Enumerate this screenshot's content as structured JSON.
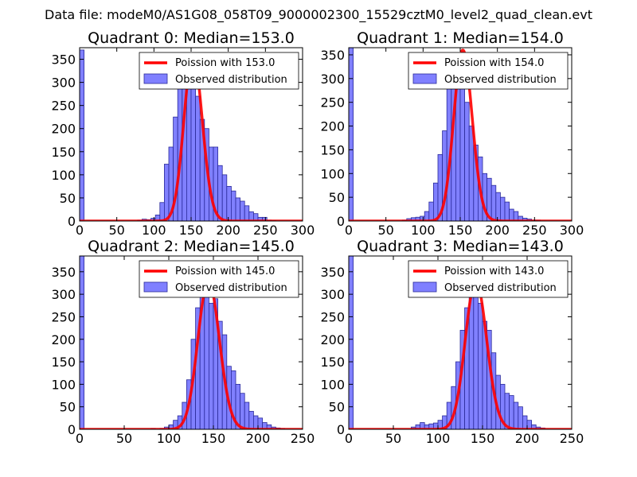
{
  "figure": {
    "suptitle": "Data file: modeM0/AS1G08_058T09_9000002300_15529cztM0_level2_quad_clean.evt"
  },
  "colors": {
    "bar_fill": "#8080ff",
    "bar_edge": "#2a2a99",
    "poisson_line": "#ff0000",
    "frame": "#000000"
  },
  "chart_data": [
    {
      "type": "bar",
      "title": "Quadrant 0: Median=153.0",
      "median": 153.0,
      "xlim": [
        0,
        300
      ],
      "ylim": [
        0,
        375
      ],
      "xticks": [
        0,
        50,
        100,
        150,
        200,
        250,
        300
      ],
      "yticks": [
        0,
        50,
        100,
        150,
        200,
        250,
        300,
        350
      ],
      "bin_width": 6,
      "bins": [
        [
          0,
          370
        ],
        [
          78,
          2
        ],
        [
          84,
          4
        ],
        [
          90,
          3
        ],
        [
          96,
          6
        ],
        [
          102,
          13
        ],
        [
          108,
          40
        ],
        [
          114,
          123
        ],
        [
          120,
          160
        ],
        [
          126,
          225
        ],
        [
          132,
          300
        ],
        [
          138,
          320
        ],
        [
          144,
          340
        ],
        [
          150,
          340
        ],
        [
          156,
          270
        ],
        [
          162,
          220
        ],
        [
          168,
          200
        ],
        [
          174,
          160
        ],
        [
          180,
          160
        ],
        [
          186,
          120
        ],
        [
          192,
          100
        ],
        [
          198,
          75
        ],
        [
          204,
          65
        ],
        [
          210,
          50
        ],
        [
          216,
          43
        ],
        [
          222,
          33
        ],
        [
          228,
          20
        ],
        [
          234,
          16
        ],
        [
          240,
          8
        ],
        [
          246,
          8
        ],
        [
          252,
          2
        ],
        [
          258,
          1
        ]
      ],
      "legend": {
        "placement": "top-right",
        "line_label": "Poission with 153.0",
        "bar_label": "Observed distribution"
      }
    },
    {
      "type": "bar",
      "title": "Quadrant 1: Median=154.0",
      "median": 154.0,
      "xlim": [
        0,
        300
      ],
      "ylim": [
        0,
        365
      ],
      "xticks": [
        0,
        50,
        100,
        150,
        200,
        250,
        300
      ],
      "yticks": [
        0,
        50,
        100,
        150,
        200,
        250,
        300,
        350
      ],
      "bin_width": 6,
      "bins": [
        [
          0,
          365
        ],
        [
          72,
          2
        ],
        [
          78,
          5
        ],
        [
          84,
          7
        ],
        [
          90,
          8
        ],
        [
          96,
          10
        ],
        [
          102,
          20
        ],
        [
          108,
          40
        ],
        [
          114,
          80
        ],
        [
          120,
          140
        ],
        [
          126,
          190
        ],
        [
          132,
          280
        ],
        [
          138,
          290
        ],
        [
          144,
          340
        ],
        [
          150,
          310
        ],
        [
          156,
          250
        ],
        [
          162,
          200
        ],
        [
          168,
          160
        ],
        [
          174,
          135
        ],
        [
          180,
          100
        ],
        [
          186,
          90
        ],
        [
          192,
          75
        ],
        [
          198,
          60
        ],
        [
          204,
          50
        ],
        [
          210,
          40
        ],
        [
          216,
          25
        ],
        [
          222,
          20
        ],
        [
          228,
          10
        ],
        [
          234,
          6
        ],
        [
          240,
          4
        ],
        [
          246,
          2
        ],
        [
          252,
          2
        ]
      ],
      "legend": {
        "placement": "top-right",
        "line_label": "Poission with 154.0",
        "bar_label": "Observed distribution"
      }
    },
    {
      "type": "bar",
      "title": "Quadrant 2: Median=145.0",
      "median": 145.0,
      "xlim": [
        0,
        250
      ],
      "ylim": [
        0,
        385
      ],
      "xticks": [
        0,
        50,
        100,
        150,
        200,
        250
      ],
      "yticks": [
        0,
        50,
        100,
        150,
        200,
        250,
        300,
        350
      ],
      "bin_width": 5,
      "bins": [
        [
          0,
          385
        ],
        [
          80,
          2
        ],
        [
          90,
          2
        ],
        [
          95,
          5
        ],
        [
          100,
          10
        ],
        [
          105,
          20
        ],
        [
          110,
          30
        ],
        [
          115,
          60
        ],
        [
          120,
          110
        ],
        [
          125,
          200
        ],
        [
          130,
          270
        ],
        [
          135,
          300
        ],
        [
          140,
          310
        ],
        [
          145,
          280
        ],
        [
          150,
          290
        ],
        [
          155,
          240
        ],
        [
          160,
          210
        ],
        [
          165,
          140
        ],
        [
          170,
          130
        ],
        [
          175,
          100
        ],
        [
          180,
          80
        ],
        [
          185,
          60
        ],
        [
          190,
          40
        ],
        [
          195,
          30
        ],
        [
          200,
          25
        ],
        [
          205,
          15
        ],
        [
          210,
          10
        ],
        [
          215,
          5
        ],
        [
          220,
          3
        ],
        [
          225,
          2
        ]
      ],
      "legend": {
        "placement": "top-right",
        "line_label": "Poission with 145.0",
        "bar_label": "Observed distribution"
      }
    },
    {
      "type": "bar",
      "title": "Quadrant 3: Median=143.0",
      "median": 143.0,
      "xlim": [
        0,
        250
      ],
      "ylim": [
        0,
        385
      ],
      "xticks": [
        0,
        50,
        100,
        150,
        200,
        250
      ],
      "yticks": [
        0,
        50,
        100,
        150,
        200,
        250,
        300,
        350
      ],
      "bin_width": 5,
      "bins": [
        [
          0,
          385
        ],
        [
          70,
          5
        ],
        [
          75,
          10
        ],
        [
          80,
          15
        ],
        [
          85,
          10
        ],
        [
          90,
          12
        ],
        [
          95,
          14
        ],
        [
          100,
          20
        ],
        [
          105,
          30
        ],
        [
          110,
          60
        ],
        [
          115,
          95
        ],
        [
          120,
          150
        ],
        [
          125,
          220
        ],
        [
          130,
          270
        ],
        [
          135,
          300
        ],
        [
          140,
          310
        ],
        [
          145,
          280
        ],
        [
          150,
          240
        ],
        [
          155,
          220
        ],
        [
          160,
          170
        ],
        [
          165,
          120
        ],
        [
          170,
          100
        ],
        [
          175,
          80
        ],
        [
          180,
          75
        ],
        [
          185,
          60
        ],
        [
          190,
          50
        ],
        [
          195,
          30
        ],
        [
          200,
          20
        ],
        [
          205,
          10
        ],
        [
          210,
          5
        ],
        [
          215,
          3
        ]
      ],
      "legend": {
        "placement": "top-right",
        "line_label": "Poission with 143.0",
        "bar_label": "Observed distribution"
      }
    }
  ]
}
